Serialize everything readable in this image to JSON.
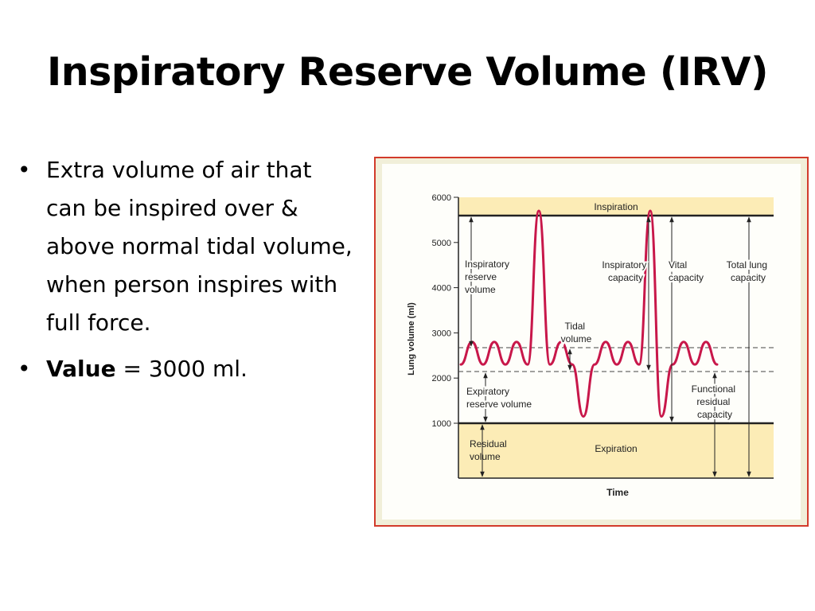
{
  "slide": {
    "title": "Inspiratory Reserve Volume (IRV)",
    "bullets": [
      {
        "text": "Extra volume of air that can be inspired over & above normal tidal volume, when person inspires with full force."
      },
      {
        "bold": "Value",
        "text": " = 3000 ml."
      }
    ]
  },
  "figure": {
    "accent_colors": {
      "frame": "#d23b2b",
      "trace": "#c8174a",
      "band": "#fcecb6"
    },
    "bands": {
      "top": "Inspiration",
      "bottom": "Expiration"
    },
    "labels": {
      "irv": [
        "Inspiratory",
        "reserve",
        "volume"
      ],
      "tidal": [
        "Tidal",
        "volume"
      ],
      "erv": [
        "Expiratory",
        "reserve volume"
      ],
      "rv": [
        "Residual",
        "volume"
      ],
      "ic": [
        "Inspiratory",
        "capacity"
      ],
      "vc": [
        "Vital",
        "capacity"
      ],
      "tlc": [
        "Total lung",
        "capacity"
      ],
      "frc": [
        "Functional",
        "residual",
        "capacity"
      ]
    }
  },
  "chart_data": {
    "type": "line",
    "xlabel": "Time",
    "ylabel": "Lung volume (ml)",
    "ylim": [
      0,
      6000
    ],
    "yticks": [
      "1000",
      "2000",
      "3000",
      "4000",
      "5000",
      "6000"
    ],
    "reference_levels_ml": {
      "max_inspiration": 5700,
      "tidal_top": 2800,
      "tidal_bottom": 2300,
      "max_expiration": 1150
    },
    "series": [
      {
        "y": [
          2300,
          2800,
          2300,
          2800,
          2300,
          2800,
          2300,
          5700,
          2300,
          2800,
          2300,
          1150,
          2300,
          2800,
          2300,
          2800,
          2300,
          5700,
          1150,
          2300,
          2800,
          2300,
          2800,
          2300
        ]
      }
    ]
  }
}
